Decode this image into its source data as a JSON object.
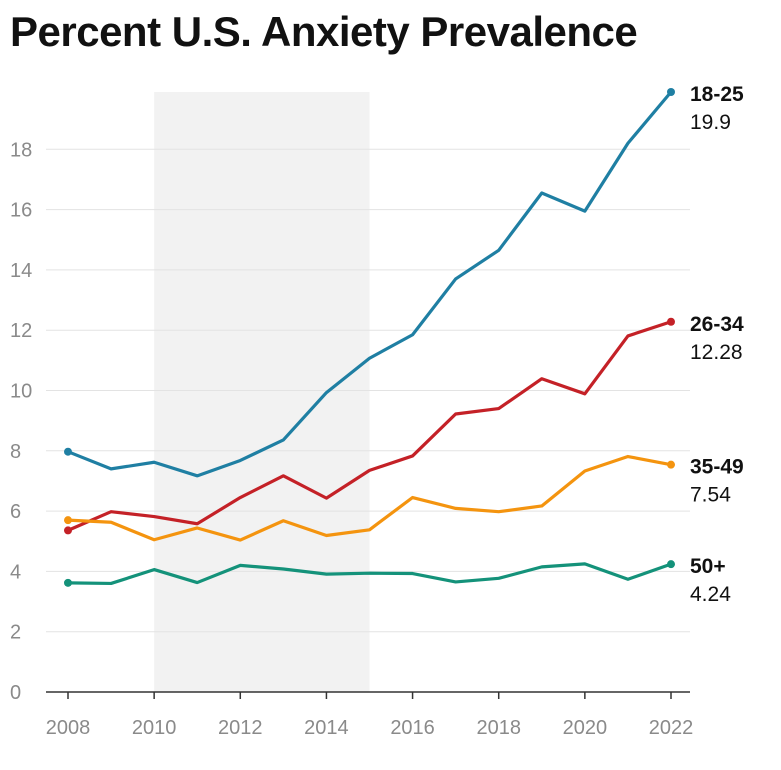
{
  "chart_data": {
    "type": "line",
    "title": "Percent U.S. Anxiety Prevalence",
    "xlabel": "",
    "ylabel": "",
    "x": [
      2008,
      2009,
      2010,
      2011,
      2012,
      2013,
      2014,
      2015,
      2016,
      2017,
      2018,
      2019,
      2020,
      2021,
      2022
    ],
    "xlim": [
      2008,
      2022
    ],
    "ylim": [
      0,
      19.9
    ],
    "x_ticks": [
      "2008",
      "2010",
      "2012",
      "2014",
      "2016",
      "2018",
      "2020",
      "2022"
    ],
    "y_ticks": [
      "0",
      "2",
      "4",
      "6",
      "8",
      "10",
      "12",
      "14",
      "16",
      "18"
    ],
    "shaded_range": [
      2010,
      2015
    ],
    "shaded_color": "#f2f2f2",
    "grid": true,
    "legend": "direct-labels-right",
    "series": [
      {
        "name": "18-25",
        "end_label": "19.9",
        "color": "#1f7fa3",
        "values": [
          7.97,
          7.4,
          7.62,
          7.17,
          7.68,
          8.36,
          9.93,
          11.07,
          11.85,
          13.7,
          14.65,
          16.55,
          15.95,
          18.2,
          19.9
        ]
      },
      {
        "name": "26-34",
        "end_label": "12.28",
        "color": "#c42127",
        "values": [
          5.36,
          5.98,
          5.82,
          5.58,
          6.45,
          7.17,
          6.43,
          7.35,
          7.83,
          9.22,
          9.4,
          10.39,
          9.89,
          11.81,
          12.28
        ]
      },
      {
        "name": "35-49",
        "end_label": "7.54",
        "color": "#f4940f",
        "values": [
          5.7,
          5.63,
          5.05,
          5.44,
          5.04,
          5.68,
          5.19,
          5.38,
          6.45,
          6.09,
          5.98,
          6.17,
          7.33,
          7.81,
          7.54
        ]
      },
      {
        "name": "50+",
        "end_label": "4.24",
        "color": "#14927a",
        "values": [
          3.62,
          3.6,
          4.06,
          3.63,
          4.2,
          4.08,
          3.91,
          3.94,
          3.93,
          3.65,
          3.77,
          4.15,
          4.25,
          3.74,
          4.24
        ]
      }
    ]
  }
}
